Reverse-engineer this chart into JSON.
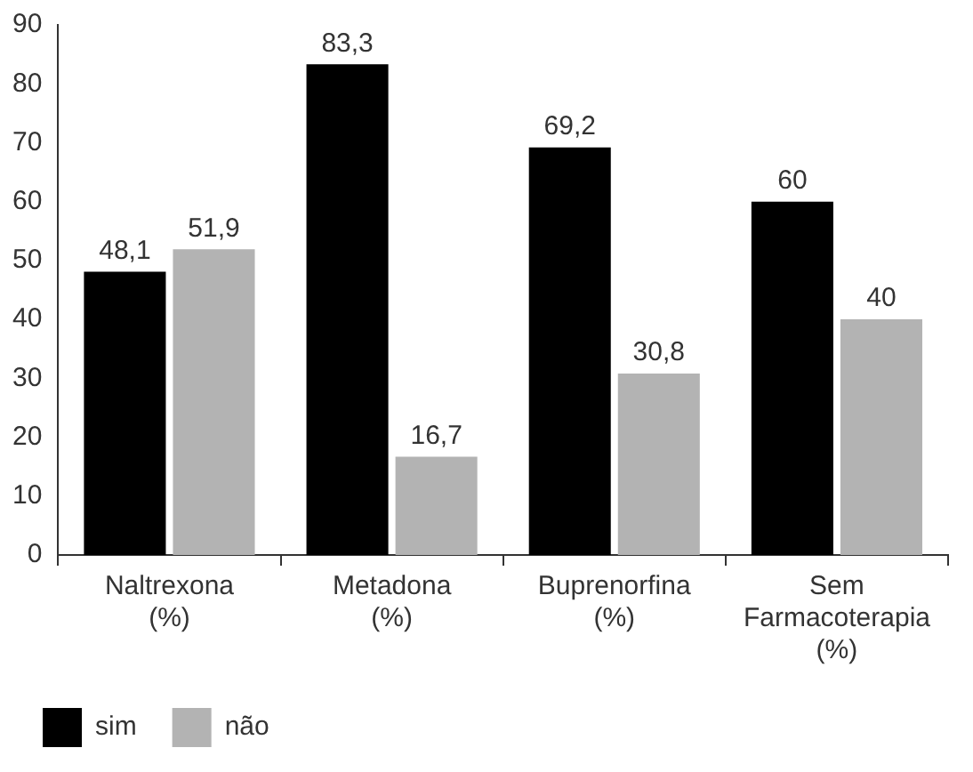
{
  "chart_data": {
    "type": "bar",
    "categories": [
      "Naltrexona\n(%)",
      "Metadona\n(%)",
      "Buprenorfina\n(%)",
      "Sem\nFarmacoterapia\n(%)"
    ],
    "series": [
      {
        "name": "sim",
        "color": "#000000",
        "values": [
          48.1,
          83.3,
          69.2,
          60
        ],
        "value_labels": [
          "48,1",
          "83,3",
          "69,2",
          "60"
        ]
      },
      {
        "name": "não",
        "color": "#b3b3b3",
        "values": [
          51.9,
          16.7,
          30.8,
          40
        ],
        "value_labels": [
          "51,9",
          "16,7",
          "30,8",
          "40"
        ]
      }
    ],
    "ylim": [
      0,
      90
    ],
    "yticks": [
      0,
      10,
      20,
      30,
      40,
      50,
      60,
      70,
      80,
      90
    ],
    "grid": false,
    "legend": "bottom left"
  }
}
